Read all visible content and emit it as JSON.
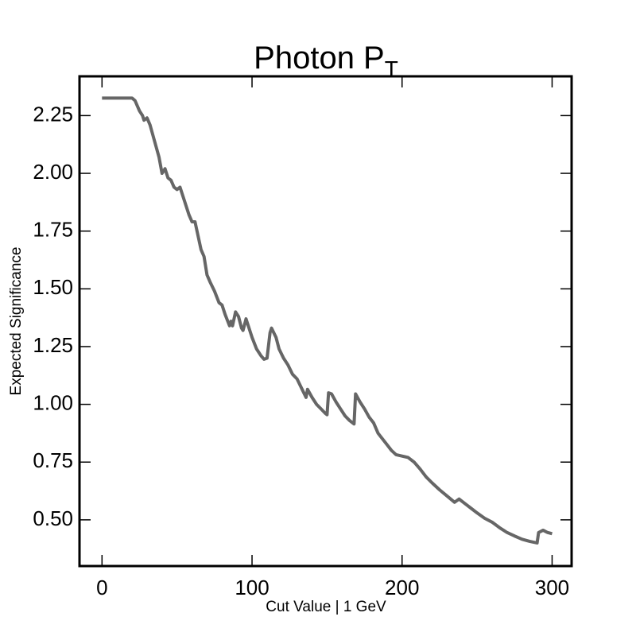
{
  "chart_data": {
    "type": "line",
    "title": "Photon P",
    "title_subscript": "T",
    "xlabel": "Cut Value | 1 GeV",
    "ylabel": "Expected Significance",
    "x": [
      0,
      20,
      22,
      25,
      27,
      28,
      30,
      32,
      35,
      38,
      40,
      42,
      44,
      46,
      48,
      50,
      52,
      54,
      56,
      58,
      60,
      62,
      64,
      66,
      68,
      70,
      72,
      75,
      78,
      80,
      82,
      85,
      86,
      87,
      89,
      91,
      93,
      94,
      96,
      98,
      100,
      103,
      106,
      108,
      110,
      112,
      113,
      116,
      118,
      121,
      124,
      127,
      130,
      133,
      136,
      137,
      140,
      143,
      146,
      149,
      150,
      151,
      153,
      156,
      159,
      162,
      165,
      168,
      169,
      172,
      175,
      178,
      181,
      184,
      187,
      190,
      193,
      196,
      200,
      204,
      208,
      212,
      216,
      220,
      225,
      230,
      235,
      238,
      242,
      246,
      250,
      255,
      260,
      265,
      270,
      275,
      280,
      285,
      290,
      291,
      294,
      297,
      300
    ],
    "series": [
      {
        "name": "Expected Significance",
        "color": "#666666",
        "values": [
          2.326,
          2.326,
          2.315,
          2.27,
          2.25,
          2.23,
          2.24,
          2.21,
          2.14,
          2.07,
          2.0,
          2.02,
          1.98,
          1.97,
          1.94,
          1.93,
          1.94,
          1.9,
          1.86,
          1.82,
          1.79,
          1.79,
          1.73,
          1.67,
          1.64,
          1.56,
          1.53,
          1.49,
          1.44,
          1.43,
          1.39,
          1.34,
          1.36,
          1.34,
          1.4,
          1.38,
          1.33,
          1.32,
          1.37,
          1.33,
          1.29,
          1.24,
          1.21,
          1.195,
          1.2,
          1.31,
          1.33,
          1.29,
          1.24,
          1.2,
          1.17,
          1.13,
          1.11,
          1.07,
          1.03,
          1.065,
          1.03,
          1.0,
          0.98,
          0.96,
          0.955,
          1.05,
          1.045,
          1.01,
          0.98,
          0.95,
          0.93,
          0.915,
          1.045,
          1.01,
          0.98,
          0.945,
          0.92,
          0.875,
          0.85,
          0.825,
          0.8,
          0.782,
          0.776,
          0.77,
          0.75,
          0.72,
          0.686,
          0.66,
          0.63,
          0.603,
          0.576,
          0.59,
          0.57,
          0.55,
          0.53,
          0.507,
          0.49,
          0.466,
          0.445,
          0.43,
          0.416,
          0.407,
          0.4,
          0.445,
          0.455,
          0.445,
          0.44
        ]
      }
    ],
    "xlim": [
      -15,
      313
    ],
    "ylim": [
      0.3,
      2.42
    ],
    "xticks": [
      0,
      100,
      200,
      300
    ],
    "yticks": [
      {
        "value": 0.5,
        "label": "0.50"
      },
      {
        "value": 0.75,
        "label": "0.75"
      },
      {
        "value": 1.0,
        "label": "1.00"
      },
      {
        "value": 1.25,
        "label": "1.25"
      },
      {
        "value": 1.5,
        "label": "1.50"
      },
      {
        "value": 1.75,
        "label": "1.75"
      },
      {
        "value": 2.0,
        "label": "2.00"
      },
      {
        "value": 2.25,
        "label": "2.25"
      }
    ]
  }
}
